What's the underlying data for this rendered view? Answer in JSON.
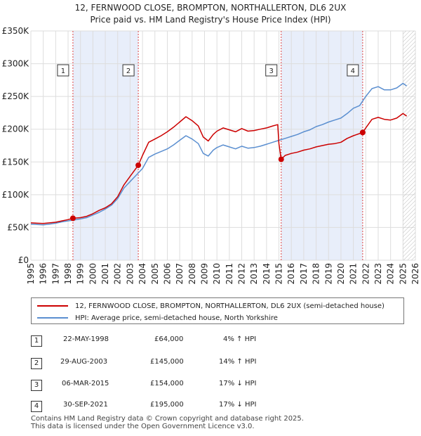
{
  "header": {
    "line1": "12, FERNWOOD CLOSE, BROMPTON, NORTHALLERTON, DL6 2UX",
    "line2": "Price paid vs. HM Land Registry's House Price Index (HPI)"
  },
  "colors": {
    "property": "#cc0000",
    "hpi": "#5b8fd0",
    "shade": "#e8eefa",
    "grid": "#dddddd",
    "marker_line": "#dd4444"
  },
  "chart_data": {
    "type": "line",
    "title": "12, FERNWOOD CLOSE, BROMPTON, NORTHALLERTON, DL6 2UX",
    "subtitle": "Price paid vs. HM Land Registry's House Price Index (HPI)",
    "xlim": [
      1995,
      2026
    ],
    "ylim": [
      0,
      350000
    ],
    "x_ticks": [
      "1995",
      "1996",
      "1997",
      "1998",
      "1999",
      "2000",
      "2001",
      "2002",
      "2003",
      "2004",
      "2005",
      "2006",
      "2007",
      "2008",
      "2009",
      "2010",
      "2011",
      "2012",
      "2013",
      "2014",
      "2015",
      "2016",
      "2017",
      "2018",
      "2019",
      "2020",
      "2021",
      "2022",
      "2023",
      "2024",
      "2025",
      "2026"
    ],
    "y_ticks": [
      {
        "value": 0,
        "label": "£0"
      },
      {
        "value": 50000,
        "label": "£50K"
      },
      {
        "value": 100000,
        "label": "£100K"
      },
      {
        "value": 150000,
        "label": "£150K"
      },
      {
        "value": 200000,
        "label": "£200K"
      },
      {
        "value": 250000,
        "label": "£250K"
      },
      {
        "value": 300000,
        "label": "£300K"
      },
      {
        "value": 350000,
        "label": "£350K"
      }
    ],
    "series": [
      {
        "name": "12, FERNWOOD CLOSE, BROMPTON, NORTHALLERTON, DL6 2UX (semi-detached house)",
        "color": "#cc0000",
        "points": [
          [
            1995.0,
            57000
          ],
          [
            1995.5,
            56500
          ],
          [
            1996.0,
            56000
          ],
          [
            1996.5,
            57000
          ],
          [
            1997.0,
            58000
          ],
          [
            1997.5,
            60000
          ],
          [
            1998.0,
            62000
          ],
          [
            1998.39,
            64000
          ],
          [
            1999.0,
            65000
          ],
          [
            1999.5,
            67000
          ],
          [
            2000.0,
            71000
          ],
          [
            2000.5,
            76000
          ],
          [
            2001.0,
            80000
          ],
          [
            2001.5,
            86000
          ],
          [
            2002.0,
            97000
          ],
          [
            2002.5,
            115000
          ],
          [
            2003.0,
            128000
          ],
          [
            2003.66,
            145000
          ],
          [
            2004.0,
            160000
          ],
          [
            2004.5,
            180000
          ],
          [
            2005.0,
            185000
          ],
          [
            2005.5,
            190000
          ],
          [
            2006.0,
            196000
          ],
          [
            2006.5,
            203000
          ],
          [
            2007.0,
            211000
          ],
          [
            2007.5,
            219000
          ],
          [
            2008.0,
            213000
          ],
          [
            2008.5,
            205000
          ],
          [
            2008.9,
            188000
          ],
          [
            2009.3,
            182000
          ],
          [
            2009.7,
            192000
          ],
          [
            2010.0,
            197000
          ],
          [
            2010.5,
            202000
          ],
          [
            2011.0,
            199000
          ],
          [
            2011.5,
            196000
          ],
          [
            2012.0,
            201000
          ],
          [
            2012.5,
            197000
          ],
          [
            2013.0,
            198000
          ],
          [
            2013.5,
            200000
          ],
          [
            2014.0,
            202000
          ],
          [
            2014.5,
            205000
          ],
          [
            2014.9,
            207000
          ],
          [
            2015.0,
            178000
          ],
          [
            2015.18,
            154000
          ],
          [
            2015.5,
            160000
          ],
          [
            2016.0,
            163000
          ],
          [
            2016.5,
            165000
          ],
          [
            2017.0,
            168000
          ],
          [
            2017.5,
            170000
          ],
          [
            2018.0,
            173000
          ],
          [
            2018.5,
            175000
          ],
          [
            2019.0,
            177000
          ],
          [
            2019.5,
            178000
          ],
          [
            2020.0,
            180000
          ],
          [
            2020.5,
            186000
          ],
          [
            2021.0,
            190000
          ],
          [
            2021.75,
            195000
          ],
          [
            2022.0,
            202000
          ],
          [
            2022.5,
            215000
          ],
          [
            2023.0,
            218000
          ],
          [
            2023.5,
            215000
          ],
          [
            2024.0,
            214000
          ],
          [
            2024.5,
            217000
          ],
          [
            2025.0,
            224000
          ],
          [
            2025.3,
            220000
          ]
        ]
      },
      {
        "name": "HPI: Average price, semi-detached house, North Yorkshire",
        "color": "#5b8fd0",
        "points": [
          [
            1995.0,
            55000
          ],
          [
            1995.5,
            54500
          ],
          [
            1996.0,
            54000
          ],
          [
            1996.5,
            55000
          ],
          [
            1997.0,
            56500
          ],
          [
            1997.5,
            58500
          ],
          [
            1998.0,
            60000
          ],
          [
            1998.5,
            61500
          ],
          [
            1999.0,
            63000
          ],
          [
            1999.5,
            65000
          ],
          [
            2000.0,
            69000
          ],
          [
            2000.5,
            73000
          ],
          [
            2001.0,
            78000
          ],
          [
            2001.5,
            84000
          ],
          [
            2002.0,
            94000
          ],
          [
            2002.5,
            110000
          ],
          [
            2003.0,
            120000
          ],
          [
            2003.5,
            130000
          ],
          [
            2004.0,
            140000
          ],
          [
            2004.5,
            157000
          ],
          [
            2005.0,
            162000
          ],
          [
            2005.5,
            166000
          ],
          [
            2006.0,
            170000
          ],
          [
            2006.5,
            176000
          ],
          [
            2007.0,
            183000
          ],
          [
            2007.5,
            190000
          ],
          [
            2008.0,
            185000
          ],
          [
            2008.5,
            178000
          ],
          [
            2008.9,
            163000
          ],
          [
            2009.3,
            159000
          ],
          [
            2009.7,
            168000
          ],
          [
            2010.0,
            172000
          ],
          [
            2010.5,
            176000
          ],
          [
            2011.0,
            173000
          ],
          [
            2011.5,
            170000
          ],
          [
            2012.0,
            174000
          ],
          [
            2012.5,
            171000
          ],
          [
            2013.0,
            172000
          ],
          [
            2013.5,
            174000
          ],
          [
            2014.0,
            177000
          ],
          [
            2014.5,
            180000
          ],
          [
            2015.0,
            183000
          ],
          [
            2015.5,
            186000
          ],
          [
            2016.0,
            189000
          ],
          [
            2016.5,
            192000
          ],
          [
            2017.0,
            196000
          ],
          [
            2017.5,
            199000
          ],
          [
            2018.0,
            204000
          ],
          [
            2018.5,
            207000
          ],
          [
            2019.0,
            211000
          ],
          [
            2019.5,
            214000
          ],
          [
            2020.0,
            217000
          ],
          [
            2020.5,
            224000
          ],
          [
            2021.0,
            232000
          ],
          [
            2021.5,
            236000
          ],
          [
            2022.0,
            250000
          ],
          [
            2022.5,
            262000
          ],
          [
            2023.0,
            265000
          ],
          [
            2023.5,
            260000
          ],
          [
            2024.0,
            260000
          ],
          [
            2024.5,
            263000
          ],
          [
            2025.0,
            270000
          ],
          [
            2025.3,
            266000
          ]
        ]
      }
    ],
    "sales": [
      {
        "n": "1",
        "x": 1998.39,
        "y": 64000
      },
      {
        "n": "2",
        "x": 2003.66,
        "y": 145000
      },
      {
        "n": "3",
        "x": 2015.18,
        "y": 154000
      },
      {
        "n": "4",
        "x": 2021.75,
        "y": 195000
      }
    ],
    "shaded_ranges": [
      [
        1998.39,
        2003.66
      ],
      [
        2015.18,
        2021.75
      ]
    ],
    "hatched_from": 2025.0
  },
  "legend": {
    "property_label": "12, FERNWOOD CLOSE, BROMPTON, NORTHALLERTON, DL6 2UX (semi-detached house)",
    "hpi_label": "HPI: Average price, semi-detached house, North Yorkshire"
  },
  "sales_table": [
    {
      "n": "1",
      "date": "22-MAY-1998",
      "price": "£64,000",
      "hpi": "4% ↑ HPI"
    },
    {
      "n": "2",
      "date": "29-AUG-2003",
      "price": "£145,000",
      "hpi": "14% ↑ HPI"
    },
    {
      "n": "3",
      "date": "06-MAR-2015",
      "price": "£154,000",
      "hpi": "17% ↓ HPI"
    },
    {
      "n": "4",
      "date": "30-SEP-2021",
      "price": "£195,000",
      "hpi": "17% ↓ HPI"
    }
  ],
  "footer": {
    "line1": "Contains HM Land Registry data © Crown copyright and database right 2025.",
    "line2": "This data is licensed under the Open Government Licence v3.0."
  }
}
